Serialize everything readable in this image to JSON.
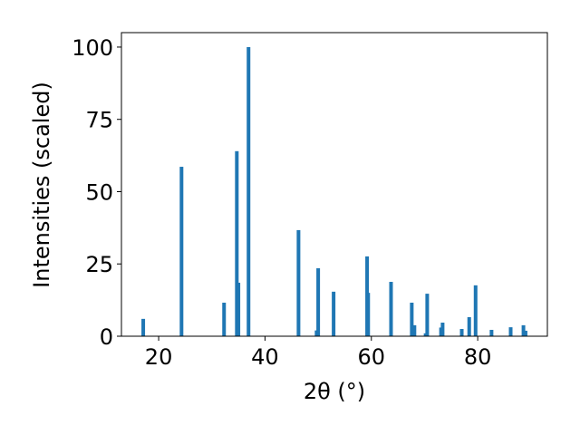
{
  "chart_data": {
    "type": "bar",
    "xlabel": "2θ (°)",
    "ylabel": "Intensities (scaled)",
    "x": [
      17.1,
      24.3,
      32.3,
      34.7,
      35.0,
      36.9,
      46.3,
      49.7,
      50.0,
      52.9,
      59.2,
      59.4,
      63.7,
      67.6,
      68.1,
      70.2,
      70.5,
      73.1,
      73.4,
      77.0,
      78.4,
      79.6,
      82.6,
      86.2,
      88.6,
      89.0
    ],
    "values": [
      6,
      58.6,
      11.6,
      64,
      18.5,
      100,
      36.7,
      2,
      23.5,
      15.4,
      27.6,
      15,
      18.8,
      11.6,
      3.8,
      1,
      14.7,
      3,
      4.7,
      2.5,
      6.6,
      17.6,
      2.2,
      3.1,
      3.8,
      1.9
    ],
    "color": "#1f77b4",
    "xlim": [
      13,
      93.1
    ],
    "xticks": [
      20,
      40,
      60,
      80
    ],
    "ylim": [
      0,
      105
    ],
    "yticks": [
      0,
      25,
      50,
      75,
      100
    ]
  }
}
